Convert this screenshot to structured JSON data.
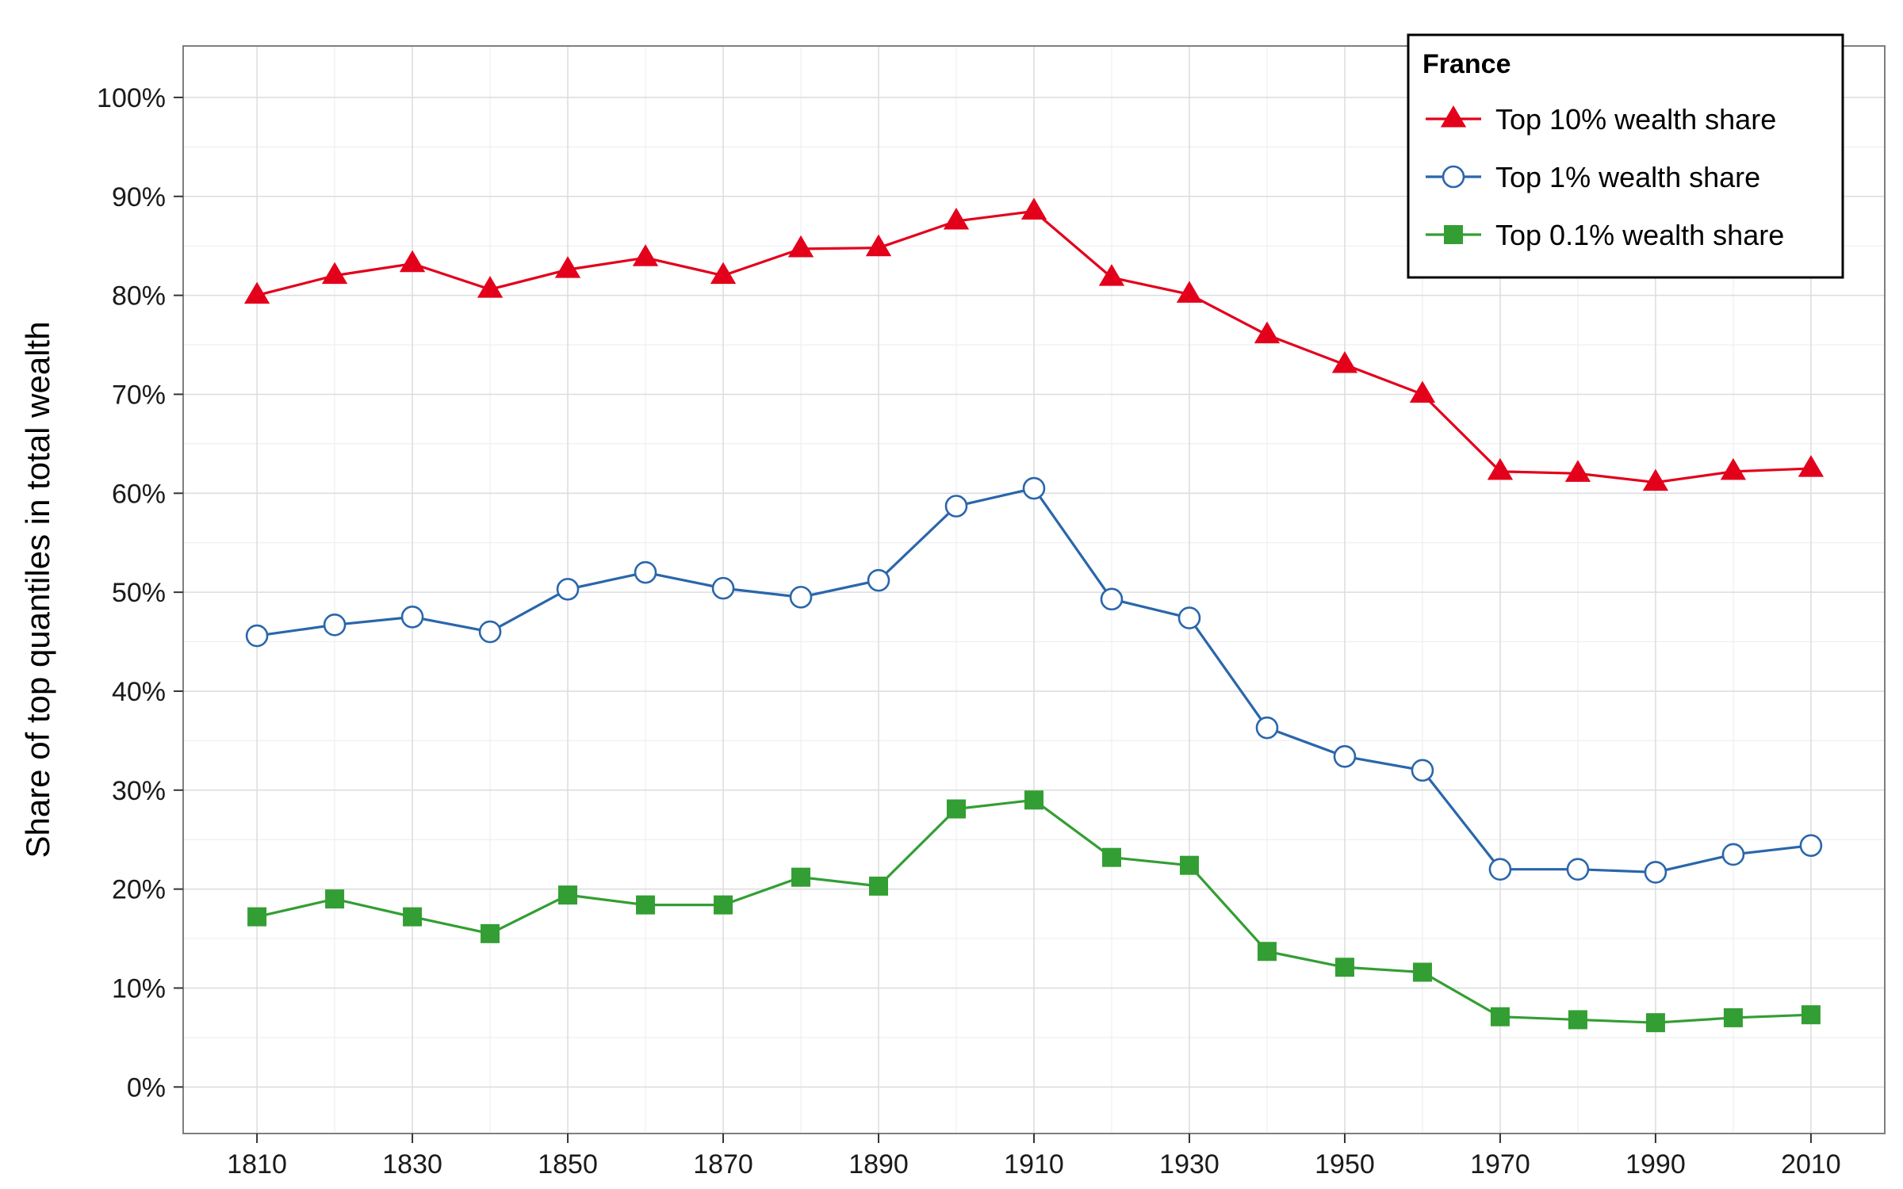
{
  "chart_data": {
    "type": "line",
    "title": "",
    "xlabel": "",
    "ylabel": "Share of top quantiles in total wealth",
    "x": [
      1810,
      1820,
      1830,
      1840,
      1850,
      1860,
      1870,
      1880,
      1890,
      1900,
      1910,
      1920,
      1930,
      1940,
      1950,
      1960,
      1970,
      1980,
      1990,
      2000,
      2010
    ],
    "xlim": [
      1800.5,
      2019.5
    ],
    "ylim": [
      -0.047,
      1.052
    ],
    "x_ticks": [
      1810,
      1830,
      1850,
      1870,
      1890,
      1910,
      1930,
      1950,
      1970,
      1990,
      2010
    ],
    "x_tick_labels": [
      "1810",
      "1830",
      "1850",
      "1870",
      "1890",
      "1910",
      "1930",
      "1950",
      "1970",
      "1990",
      "2010"
    ],
    "y_ticks": [
      0,
      0.1,
      0.2,
      0.3,
      0.4,
      0.5,
      0.6,
      0.7,
      0.8,
      0.9,
      1.0
    ],
    "y_tick_labels": [
      "0%",
      "10%",
      "20%",
      "30%",
      "40%",
      "50%",
      "60%",
      "70%",
      "80%",
      "90%",
      "100%"
    ],
    "grid": true,
    "legend": {
      "title": "France",
      "position": "top-right"
    },
    "series": [
      {
        "name": "Top 10% wealth share",
        "color": "#E3001B",
        "marker": "triangle",
        "values": [
          0.8,
          0.82,
          0.832,
          0.806,
          0.826,
          0.838,
          0.82,
          0.847,
          0.848,
          0.875,
          0.885,
          0.818,
          0.801,
          0.76,
          0.73,
          0.7,
          0.622,
          0.62,
          0.611,
          0.622,
          0.625
        ]
      },
      {
        "name": "Top 1% wealth share",
        "color": "#2A66AB",
        "marker": "open-circle",
        "values": [
          0.456,
          0.467,
          0.475,
          0.46,
          0.503,
          0.52,
          0.504,
          0.495,
          0.512,
          0.587,
          0.605,
          0.493,
          0.474,
          0.363,
          0.334,
          0.32,
          0.22,
          0.22,
          0.217,
          0.235,
          0.244
        ]
      },
      {
        "name": "Top 0.1% wealth share",
        "color": "#339E33",
        "marker": "square",
        "values": [
          0.172,
          0.19,
          0.172,
          0.155,
          0.194,
          0.184,
          0.184,
          0.212,
          0.203,
          0.281,
          0.29,
          0.232,
          0.224,
          0.137,
          0.121,
          0.116,
          0.071,
          0.068,
          0.065,
          0.07,
          0.073
        ]
      }
    ]
  }
}
